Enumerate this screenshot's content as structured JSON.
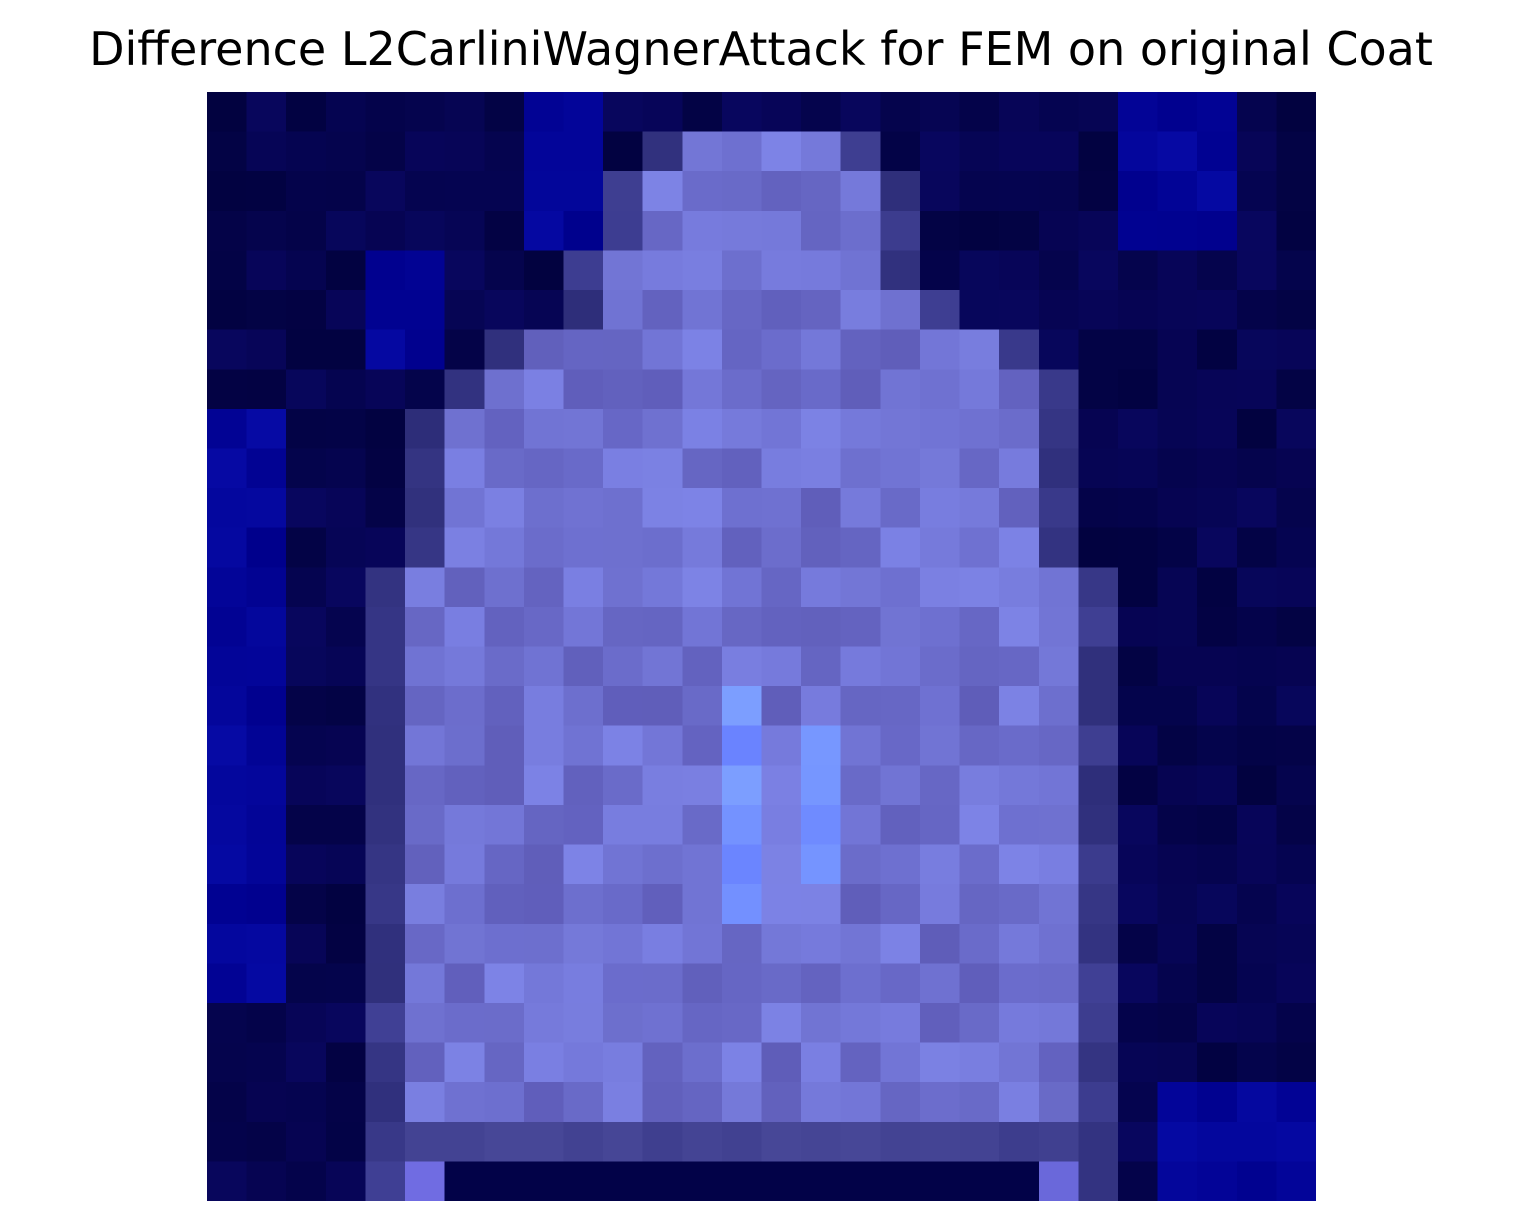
{
  "figure": {
    "title": "Difference L2CarliniWagnerAttack for FEM on original Coat"
  },
  "image": {
    "subject": "coat",
    "grid_size": 28,
    "palette": {
      "background_dark": "#020248",
      "background_blue": "#03038f",
      "coat_body": "#6b6bc0",
      "coat_highlight": "#7a90ff",
      "coat_edge": "#3a3a88"
    }
  }
}
